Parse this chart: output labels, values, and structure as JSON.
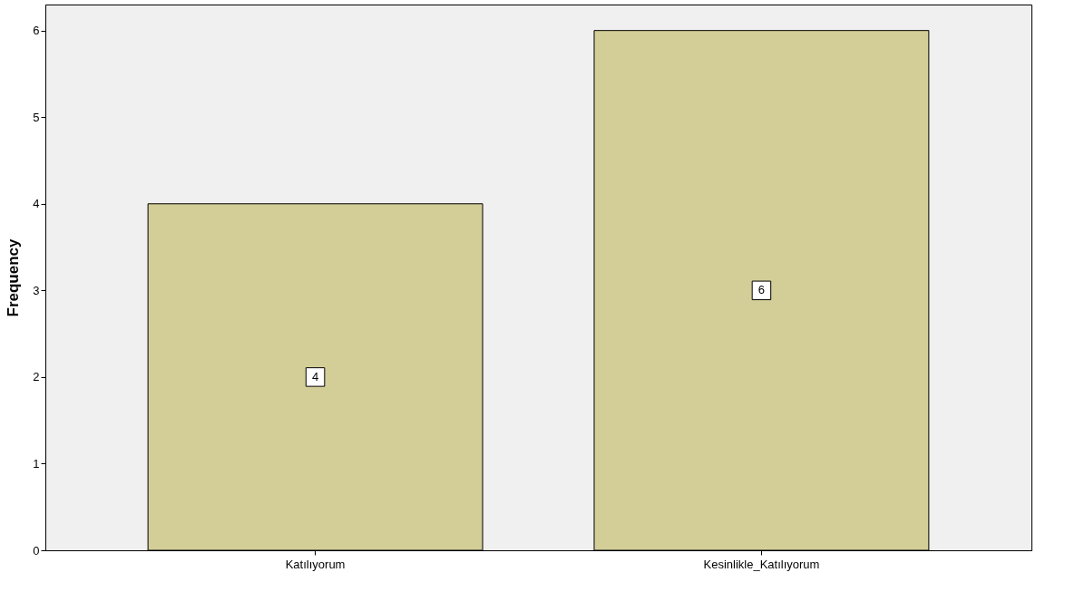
{
  "chart_data": {
    "type": "bar",
    "ylabel": "Frequency",
    "categories": [
      "Katılıyorum",
      "Kesinlikle_Katılıyorum"
    ],
    "values": [
      4,
      6
    ],
    "color": "#d3ce97",
    "ylim": [
      0,
      6.3
    ],
    "yticks": [
      0,
      1,
      2,
      3,
      4,
      5,
      6
    ],
    "grid": false,
    "data_labels": true
  }
}
